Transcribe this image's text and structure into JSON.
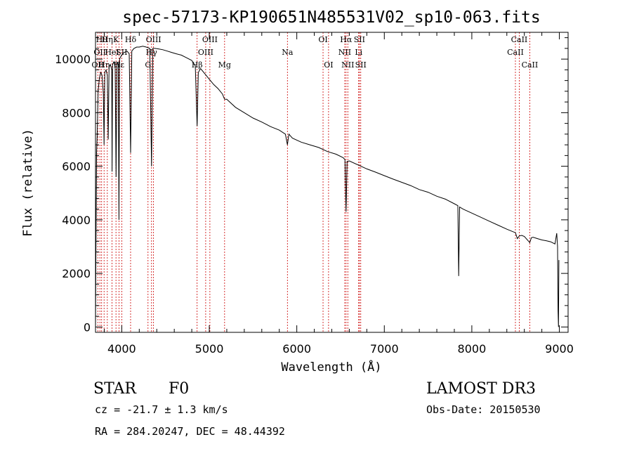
{
  "chart_data": {
    "type": "line",
    "title": "spec-57173-KP190651N485531V02_sp10-063.fits",
    "xlabel": "Wavelength (Å)",
    "ylabel": "Flux (relative)",
    "xlim": [
      3700,
      9100
    ],
    "ylim": [
      -200,
      11000
    ],
    "xticks": [
      4000,
      5000,
      6000,
      7000,
      8000,
      9000
    ],
    "xtick_labels": [
      "4000",
      "5000",
      "6000",
      "7000",
      "8000",
      "9000"
    ],
    "yticks": [
      0,
      2000,
      4000,
      6000,
      8000,
      10000
    ],
    "ytick_labels": [
      "0",
      "2000",
      "4000",
      "6000",
      "8000",
      "10000"
    ],
    "series": [
      {
        "name": "spectrum",
        "x": [
          3700,
          3705,
          3712,
          3720,
          3730,
          3745,
          3760,
          3775,
          3790,
          3798,
          3806,
          3820,
          3835,
          3845,
          3855,
          3870,
          3885,
          3889,
          3895,
          3910,
          3925,
          3935,
          3945,
          3960,
          3968,
          3975,
          3990,
          4010,
          4030,
          4060,
          4085,
          4101,
          4115,
          4140,
          4170,
          4200,
          4240,
          4280,
          4320,
          4340,
          4355,
          4380,
          4420,
          4470,
          4520,
          4570,
          4620,
          4680,
          4740,
          4800,
          4840,
          4861,
          4875,
          4900,
          4950,
          5000,
          5050,
          5100,
          5150,
          5175,
          5200,
          5300,
          5400,
          5500,
          5600,
          5700,
          5800,
          5870,
          5893,
          5910,
          5950,
          6050,
          6150,
          6250,
          6350,
          6450,
          6530,
          6550,
          6563,
          6575,
          6600,
          6700,
          6800,
          6900,
          7000,
          7100,
          7200,
          7300,
          7400,
          7500,
          7600,
          7700,
          7800,
          7840,
          7850,
          7860,
          7900,
          8000,
          8100,
          8200,
          8300,
          8400,
          8498,
          8520,
          8542,
          8570,
          8600,
          8662,
          8680,
          8700,
          8750,
          8800,
          8850,
          8900,
          8950,
          8970,
          8980,
          8985,
          8990,
          8995
        ],
        "y": [
          0,
          2800,
          6500,
          7200,
          8800,
          9300,
          9500,
          9400,
          8700,
          6800,
          9500,
          9600,
          9400,
          7000,
          9700,
          9800,
          9600,
          5800,
          9800,
          9900,
          9700,
          5600,
          9900,
          9800,
          4000,
          10000,
          10100,
          10200,
          10250,
          10300,
          10200,
          6500,
          10300,
          10400,
          10450,
          10450,
          10480,
          10450,
          10400,
          6000,
          10400,
          10400,
          10380,
          10350,
          10300,
          10250,
          10200,
          10150,
          10050,
          9950,
          9750,
          7500,
          9500,
          9650,
          9450,
          9250,
          9050,
          8900,
          8700,
          8500,
          8500,
          8200,
          8000,
          7800,
          7650,
          7480,
          7350,
          7200,
          6800,
          7200,
          7050,
          6900,
          6800,
          6700,
          6550,
          6450,
          6320,
          6250,
          4300,
          6180,
          6200,
          6050,
          5900,
          5780,
          5650,
          5520,
          5400,
          5280,
          5130,
          5030,
          4880,
          4770,
          4600,
          4530,
          1900,
          4480,
          4400,
          4250,
          4100,
          3950,
          3800,
          3650,
          3520,
          3300,
          3400,
          3420,
          3380,
          3150,
          3330,
          3350,
          3300,
          3250,
          3220,
          3180,
          3100,
          3500,
          3000,
          600,
          0,
          2500
        ]
      }
    ],
    "spectral_lines": [
      {
        "wavelength": 3726,
        "label": "OII",
        "row": 3
      },
      {
        "wavelength": 3750,
        "label": "OII",
        "row": 2
      },
      {
        "wavelength": 3770,
        "label": "Hθ",
        "row": 1
      },
      {
        "wavelength": 3798,
        "label": "Hη",
        "row": 3
      },
      {
        "wavelength": 3835,
        "label": "Hη",
        "row": 1
      },
      {
        "wavelength": 3889,
        "label": "HeI",
        "row": 2
      },
      {
        "wavelength": 3934,
        "label": "K",
        "row": 1
      },
      {
        "wavelength": 3968,
        "label": "Hε",
        "row": 3
      },
      {
        "wavelength": 4000,
        "label": "SII",
        "row": 2
      },
      {
        "wavelength": 4101,
        "label": "Hδ",
        "row": 1
      },
      {
        "wavelength": 4300,
        "label": "G",
        "row": 3
      },
      {
        "wavelength": 4340,
        "label": "Hγ",
        "row": 2
      },
      {
        "wavelength": 4363,
        "label": "OIII",
        "row": 1
      },
      {
        "wavelength": 4861,
        "label": "Hβ",
        "row": 3
      },
      {
        "wavelength": 4959,
        "label": "OIII",
        "row": 2
      },
      {
        "wavelength": 5007,
        "label": "OIII",
        "row": 1
      },
      {
        "wavelength": 5175,
        "label": "Mg",
        "row": 3
      },
      {
        "wavelength": 5893,
        "label": "Na",
        "row": 2
      },
      {
        "wavelength": 6300,
        "label": "OI",
        "row": 1
      },
      {
        "wavelength": 6363,
        "label": "OI",
        "row": 3
      },
      {
        "wavelength": 6548,
        "label": "NII",
        "row": 2
      },
      {
        "wavelength": 6563,
        "label": "Hα",
        "row": 1
      },
      {
        "wavelength": 6583,
        "label": "NII",
        "row": 3
      },
      {
        "wavelength": 6707,
        "label": "Li",
        "row": 2
      },
      {
        "wavelength": 6716,
        "label": "SII",
        "row": 1
      },
      {
        "wavelength": 6731,
        "label": "SII",
        "row": 3
      },
      {
        "wavelength": 8498,
        "label": "CaII",
        "row": 2
      },
      {
        "wavelength": 8542,
        "label": "CaII",
        "row": 1
      },
      {
        "wavelength": 8662,
        "label": "CaII",
        "row": 3
      }
    ]
  },
  "info": {
    "object_class": "STAR",
    "subclass": "F0",
    "velocity": "cz = -21.7 ± 1.3 km/s",
    "coordinates": "RA = 284.20247, DEC =  48.44392",
    "survey": "LAMOST DR3",
    "obs_date": "Obs-Date: 20150530"
  },
  "colors": {
    "spectrum": "#000000",
    "line_markers": "#cc0000",
    "axes": "#000000"
  }
}
